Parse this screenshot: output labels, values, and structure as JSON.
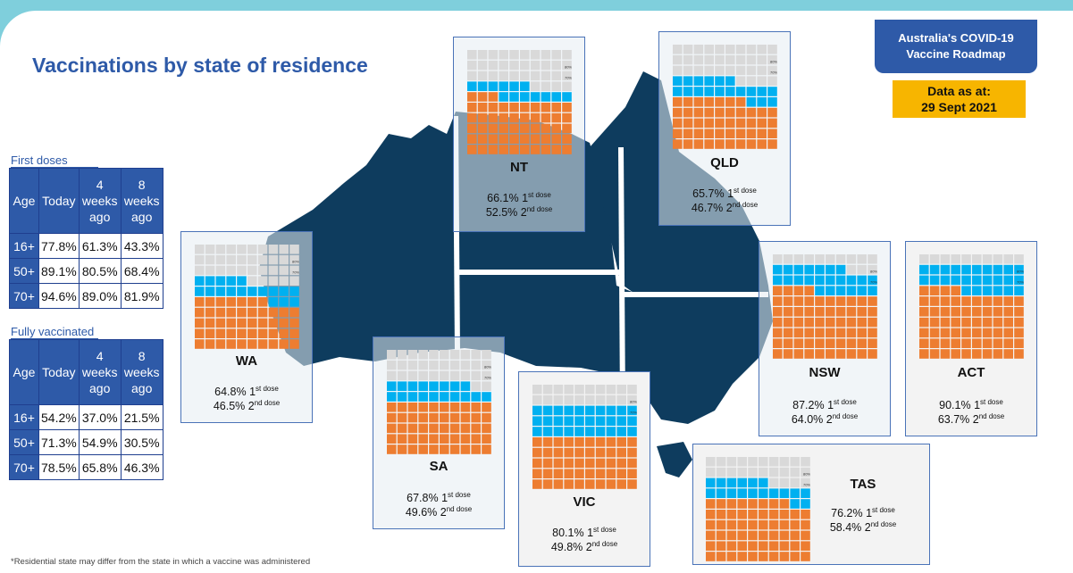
{
  "title": "Vaccinations by state of residence",
  "roadmap_badge": "Australia's COVID-19 Vaccine Roadmap",
  "data_as_at": "Data as at:",
  "data_date": "29 Sept 2021",
  "footnote": "*Residential state may differ from the state in which a vaccine was administered",
  "colors": {
    "first_dose": "#00b0f0",
    "second_dose": "#ed7d31",
    "unvaccinated": "#d9d9d9",
    "map": "#0e3c5e",
    "accent": "#2e5aa8"
  },
  "tables": {
    "columns": [
      "Age",
      "Today",
      "4 weeks ago",
      "8 weeks ago"
    ],
    "first_doses": {
      "caption": "First doses",
      "rows": [
        {
          "age": "16+",
          "today": "77.8%",
          "w4": "61.3%",
          "w8": "43.3%"
        },
        {
          "age": "50+",
          "today": "89.1%",
          "w4": "80.5%",
          "w8": "68.4%"
        },
        {
          "age": "70+",
          "today": "94.6%",
          "w4": "89.0%",
          "w8": "81.9%"
        }
      ]
    },
    "fully_vaccinated": {
      "caption": "Fully vaccinated",
      "rows": [
        {
          "age": "16+",
          "today": "54.2%",
          "w4": "37.0%",
          "w8": "21.5%"
        },
        {
          "age": "50+",
          "today": "71.3%",
          "w4": "54.9%",
          "w8": "30.5%"
        },
        {
          "age": "70+",
          "today": "78.5%",
          "w4": "65.8%",
          "w8": "46.3%"
        }
      ]
    }
  },
  "chart_data": {
    "type": "waffle",
    "dose_suffix_1": "st dose",
    "dose_suffix_2": "nd dose",
    "markers": [
      "80%",
      "70%"
    ],
    "states": [
      {
        "name": "WA",
        "first": 64.8,
        "second": 46.5,
        "first_label": "64.8% 1",
        "second_label": "46.5% 2"
      },
      {
        "name": "NT",
        "first": 66.1,
        "second": 52.5,
        "first_label": "66.1% 1",
        "second_label": "52.5% 2"
      },
      {
        "name": "QLD",
        "first": 65.7,
        "second": 46.7,
        "first_label": "65.7% 1",
        "second_label": "46.7% 2"
      },
      {
        "name": "SA",
        "first": 67.8,
        "second": 49.6,
        "first_label": "67.8% 1",
        "second_label": "49.6% 2"
      },
      {
        "name": "VIC",
        "first": 80.1,
        "second": 49.8,
        "first_label": "80.1% 1",
        "second_label": "49.8% 2"
      },
      {
        "name": "NSW",
        "first": 87.2,
        "second": 64.0,
        "first_label": "87.2% 1",
        "second_label": "64.0% 2"
      },
      {
        "name": "ACT",
        "first": 90.1,
        "second": 63.7,
        "first_label": "90.1% 1",
        "second_label": "63.7% 2"
      },
      {
        "name": "TAS",
        "first": 76.2,
        "second": 58.4,
        "first_label": "76.2% 1",
        "second_label": "58.4% 2"
      }
    ]
  }
}
